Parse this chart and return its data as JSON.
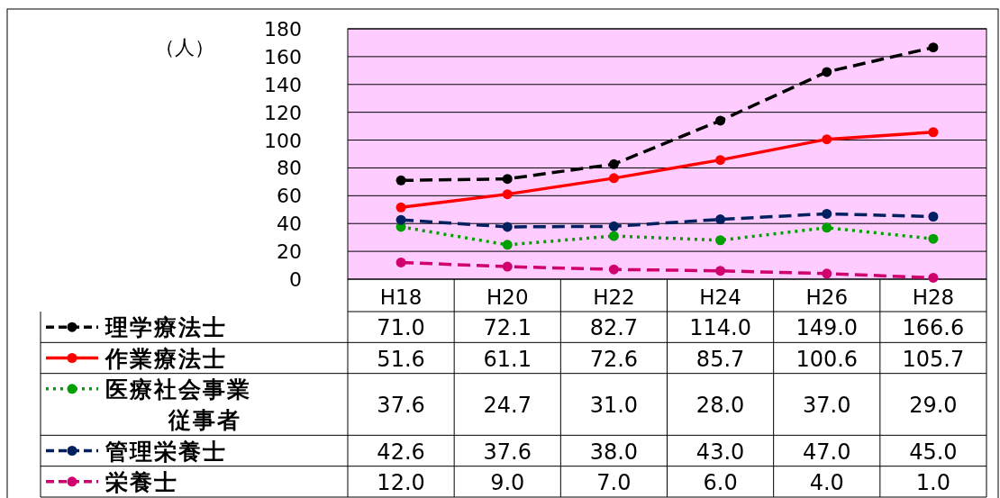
{
  "chart_data": {
    "type": "line",
    "ylabel": "（人）",
    "categories": [
      "H18",
      "H20",
      "H22",
      "H24",
      "H26",
      "H28"
    ],
    "ylim": [
      0,
      180
    ],
    "yticks": [
      0,
      20,
      40,
      60,
      80,
      100,
      120,
      140,
      160,
      180
    ],
    "grid": "y",
    "legend": "bottom",
    "marker": "circle",
    "series": [
      {
        "name": "理学療法士",
        "color": "#000000",
        "line_style": "dashed",
        "values": [
          71.0,
          72.1,
          82.7,
          114.0,
          149.0,
          166.6
        ],
        "value_labels": [
          "71.0",
          "72.1",
          "82.7",
          "114.0",
          "149.0",
          "166.6"
        ]
      },
      {
        "name": "作業療法士",
        "color": "#ff0000",
        "line_style": "solid",
        "values": [
          51.6,
          61.1,
          72.6,
          85.7,
          100.6,
          105.7
        ],
        "value_labels": [
          "51.6",
          "61.1",
          "72.6",
          "85.7",
          "100.6",
          "105.7"
        ]
      },
      {
        "name": "医療社会事業従事者",
        "color": "#00a000",
        "line_style": "dotted",
        "values": [
          37.6,
          24.7,
          31.0,
          28.0,
          37.0,
          29.0
        ],
        "value_labels": [
          "37.6",
          "24.7",
          "31.0",
          "28.0",
          "37.0",
          "29.0"
        ]
      },
      {
        "name": "管理栄養士",
        "color": "#002060",
        "line_style": "dashed",
        "values": [
          42.6,
          37.6,
          38.0,
          43.0,
          47.0,
          45.0
        ],
        "value_labels": [
          "42.6",
          "37.6",
          "38.0",
          "43.0",
          "47.0",
          "45.0"
        ]
      },
      {
        "name": "栄養士",
        "color": "#d0006f",
        "line_style": "dashed",
        "values": [
          12.0,
          9.0,
          7.0,
          6.0,
          4.0,
          1.0
        ],
        "value_labels": [
          "12.0",
          "9.0",
          "7.0",
          "6.0",
          "4.0",
          "1.0"
        ]
      }
    ]
  }
}
